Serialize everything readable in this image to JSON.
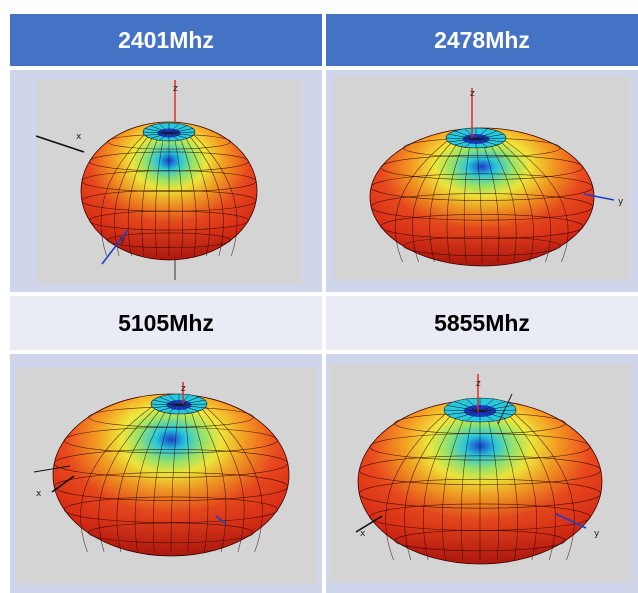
{
  "table": {
    "header": {
      "left": "2401Mhz",
      "right": "2478Mhz"
    },
    "subheader": {
      "left": "5105Mhz",
      "right": "5855Mhz"
    },
    "colors": {
      "header_bg": "#4472c4",
      "header_text": "#ffffff",
      "subheader_bg": "#e9ebf5",
      "image_cell_bg": "#cfd5ea",
      "plot_bg": "#d4d4d4",
      "lobe_red": "#e8201a",
      "lobe_orange": "#f7a023",
      "lobe_yellow": "#f2ea3c",
      "lobe_cyan": "#27c9e0",
      "lobe_blue": "#1a3fd0"
    }
  },
  "plots": [
    {
      "freq_label": "2401Mhz",
      "axes": {
        "x": "x",
        "y": "y",
        "z": "z"
      }
    },
    {
      "freq_label": "2478Mhz",
      "axes": {
        "y": "y",
        "z": "z"
      }
    },
    {
      "freq_label": "5105Mhz",
      "axes": {
        "x": "x",
        "z": "z"
      }
    },
    {
      "freq_label": "5855Mhz",
      "axes": {
        "x": "x",
        "y": "y",
        "z": "z"
      }
    }
  ]
}
